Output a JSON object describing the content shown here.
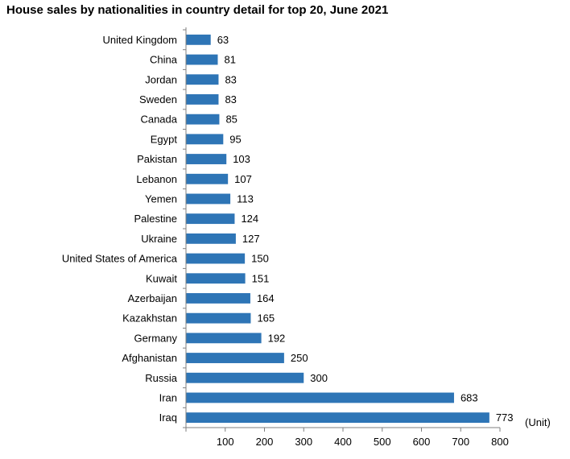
{
  "chart_data": {
    "type": "bar",
    "orientation": "horizontal",
    "title": "House sales by nationalities in country detail for top 20, June 2021",
    "categories": [
      "United Kingdom",
      "China",
      "Jordan",
      "Sweden",
      "Canada",
      "Egypt",
      "Pakistan",
      "Lebanon",
      "Yemen",
      "Palestine",
      "Ukraine",
      "United States of America",
      "Kuwait",
      "Azerbaijan",
      "Kazakhstan",
      "Germany",
      "Afghanistan",
      "Russia",
      "Iran",
      "Iraq"
    ],
    "values": [
      63,
      81,
      83,
      83,
      85,
      95,
      103,
      107,
      113,
      124,
      127,
      150,
      151,
      164,
      165,
      192,
      250,
      300,
      683,
      773
    ],
    "xlim": [
      0,
      800
    ],
    "xticks": [
      "100",
      "200",
      "300",
      "400",
      "500",
      "600",
      "700",
      "800"
    ],
    "unit_label": "(Unit)",
    "data_labels": true,
    "grid": false,
    "bar_color": "#2E75B6"
  }
}
